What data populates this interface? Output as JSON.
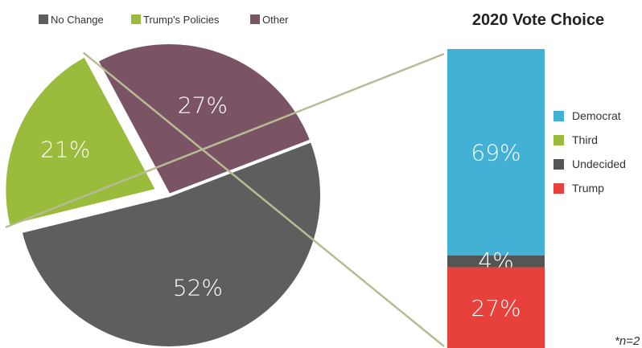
{
  "chart_data": [
    {
      "type": "pie",
      "legend_position": "top-left",
      "slices": [
        {
          "label": "No Change",
          "value": 52,
          "display": "52%",
          "color": "#5e5e5e"
        },
        {
          "label": "Trump's Policies",
          "value": 21,
          "display": "21%",
          "color": "#9bbb3c",
          "exploded": true
        },
        {
          "label": "Other",
          "value": 27,
          "display": "27%",
          "color": "#7a5464"
        }
      ]
    },
    {
      "type": "bar",
      "stacked": true,
      "title": "2020 Vote Choice",
      "legend_position": "right",
      "segments": [
        {
          "label": "Democrat",
          "value": 69,
          "display": "69%",
          "color": "#43b0d6"
        },
        {
          "label": "Third",
          "value": 0,
          "display": "",
          "color": "#9bbb3c"
        },
        {
          "label": "Undecided",
          "value": 4,
          "display": "4%",
          "color": "#555555"
        },
        {
          "label": "Trump",
          "value": 27,
          "display": "27%",
          "color": "#e8403a"
        }
      ]
    }
  ],
  "footnote": "*n=2",
  "connector_color": "#b8bb93"
}
